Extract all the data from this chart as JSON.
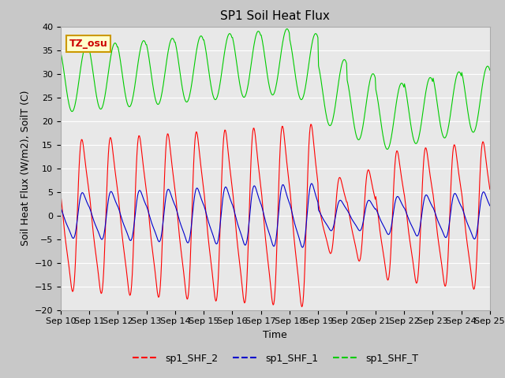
{
  "title": "SP1 Soil Heat Flux",
  "xlabel": "Time",
  "ylabel": "Soil Heat Flux (W/m2), SoilT (C)",
  "ylim": [
    -20,
    40
  ],
  "xlim": [
    0,
    15
  ],
  "x_tick_labels": [
    "Sep 10",
    "Sep 11",
    "Sep 12",
    "Sep 13",
    "Sep 14",
    "Sep 15",
    "Sep 16",
    "Sep 17",
    "Sep 18",
    "Sep 19",
    "Sep 20",
    "Sep 21",
    "Sep 22",
    "Sep 23",
    "Sep 24",
    "Sep 25"
  ],
  "fig_bg": "#c8c8c8",
  "plot_bg": "#e8e8e8",
  "line_colors": {
    "shf2": "#ff0000",
    "shf1": "#0000cc",
    "shfT": "#00cc00"
  },
  "legend_labels": [
    "sp1_SHF_2",
    "sp1_SHF_1",
    "sp1_SHF_T"
  ],
  "annotation_text": "TZ_osu",
  "annotation_color": "#cc0000",
  "annotation_bg": "#ffffcc",
  "annotation_border": "#cc9900",
  "grid_color": "#ffffff",
  "title_fontsize": 11,
  "axis_fontsize": 9,
  "tick_fontsize": 8
}
